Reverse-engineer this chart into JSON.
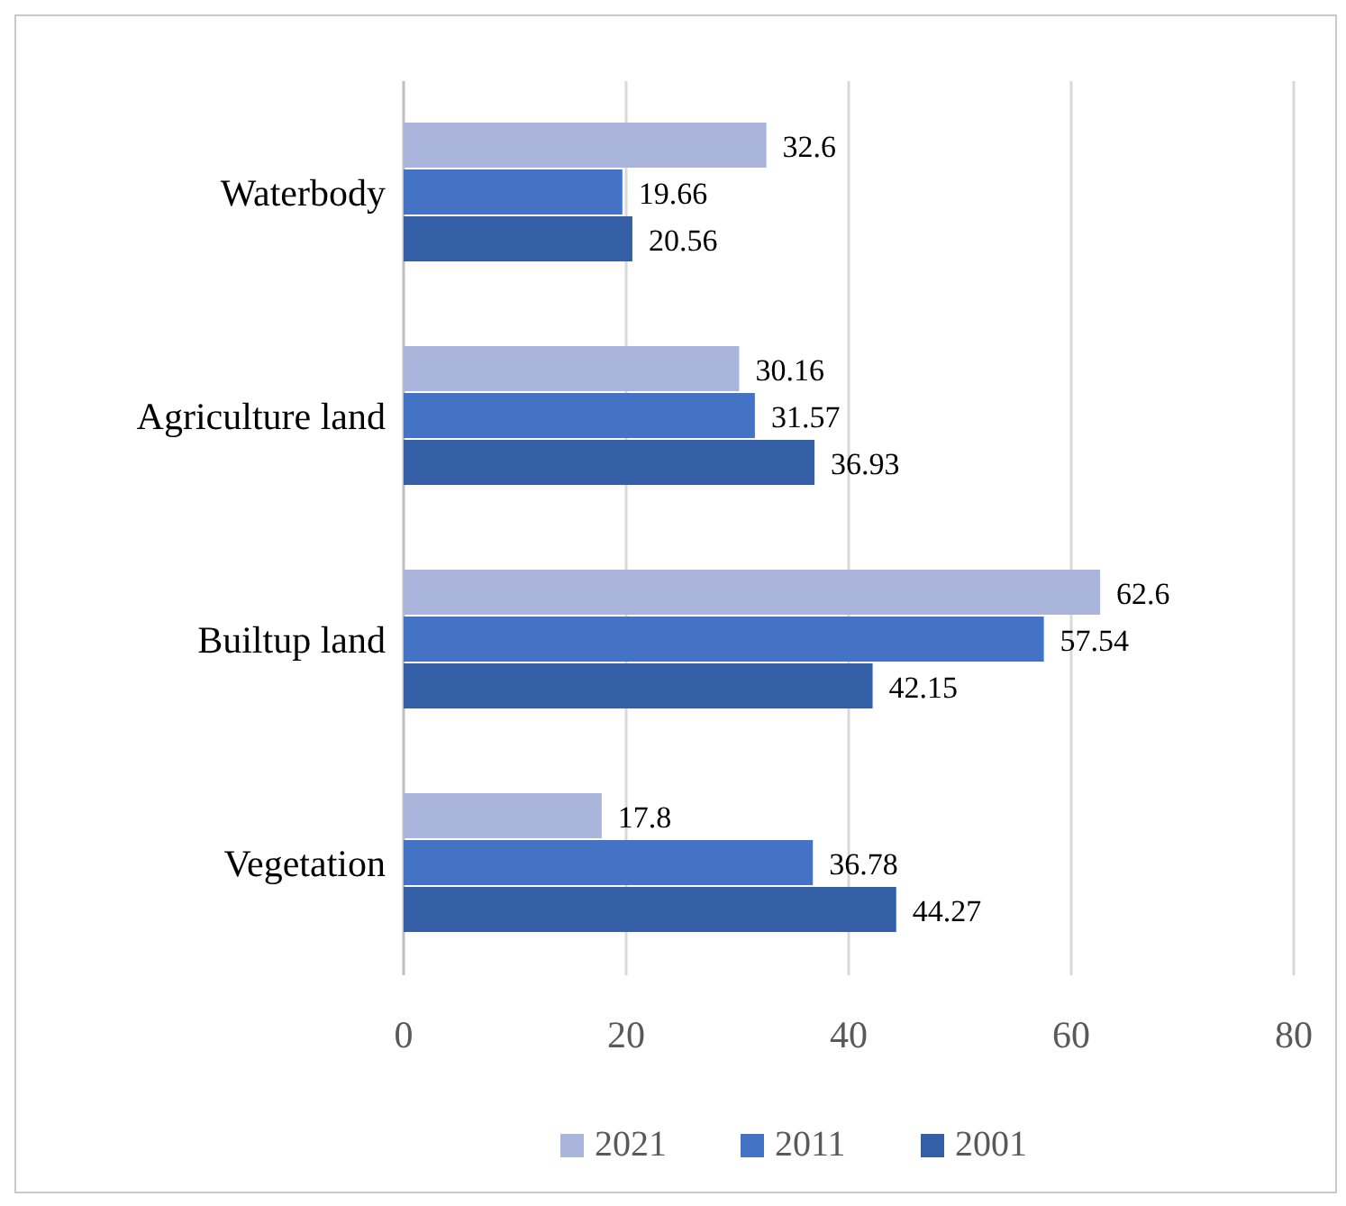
{
  "chart_data": {
    "type": "bar",
    "orientation": "horizontal",
    "categories": [
      "Waterbody",
      "Agriculture land",
      "Builtup land",
      "Vegetation"
    ],
    "series": [
      {
        "name": "2021",
        "color": "#a9b5da",
        "values": [
          32.6,
          30.16,
          62.6,
          17.8
        ]
      },
      {
        "name": "2011",
        "color": "#4472c4",
        "values": [
          19.66,
          31.57,
          57.54,
          36.78
        ]
      },
      {
        "name": "2001",
        "color": "#345fa7",
        "values": [
          20.56,
          36.93,
          42.15,
          44.27
        ]
      }
    ],
    "xlim": [
      0,
      80
    ],
    "xticks": [
      0,
      20,
      40,
      60,
      80
    ],
    "grid": "x",
    "legend": "bottom",
    "data_labels": true
  }
}
